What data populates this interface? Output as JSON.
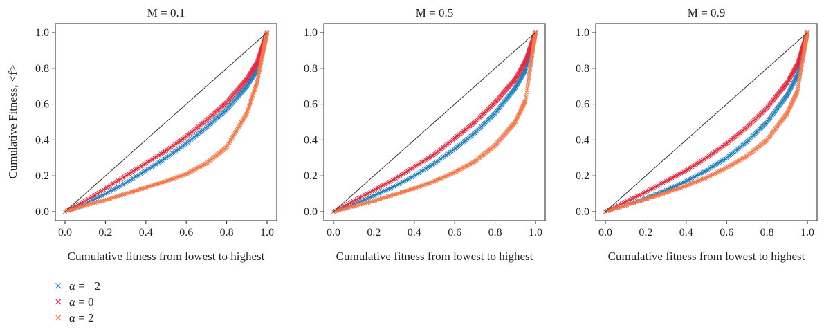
{
  "chart_data": {
    "type": "scatter",
    "ylabel": "Cumulative Fitness, <f>",
    "xlim": [
      0,
      1
    ],
    "ylim": [
      0,
      1
    ],
    "xticks": [
      "0.0",
      "0.2",
      "0.4",
      "0.6",
      "0.8",
      "1.0"
    ],
    "yticks": [
      "0.0",
      "0.2",
      "0.4",
      "0.6",
      "0.8",
      "1.0"
    ],
    "legend_position": "bottom-left, below plots",
    "marker": "x",
    "series_meta": [
      {
        "name": "α = −2",
        "color": "#1f7fc1"
      },
      {
        "name": "α = 0",
        "color": "#e8263b"
      },
      {
        "name": "α = 2",
        "color": "#f4794a"
      }
    ],
    "diagonal_reference": {
      "x": [
        0,
        1
      ],
      "y": [
        0,
        1
      ],
      "color": "#333333"
    },
    "panels": [
      {
        "title": "M = 0.1",
        "xlabel": "Cumulative fitness from lowest to highest",
        "series": [
          {
            "name": "α = −2",
            "x": [
              0,
              0.1,
              0.2,
              0.3,
              0.4,
              0.5,
              0.6,
              0.7,
              0.8,
              0.9,
              0.95,
              1.0
            ],
            "y": [
              0,
              0.045,
              0.1,
              0.16,
              0.23,
              0.3,
              0.38,
              0.47,
              0.57,
              0.7,
              0.79,
              1.0
            ]
          },
          {
            "name": "α = 0",
            "x": [
              0,
              0.1,
              0.2,
              0.3,
              0.4,
              0.5,
              0.6,
              0.7,
              0.8,
              0.9,
              0.95,
              1.0
            ],
            "y": [
              0,
              0.06,
              0.13,
              0.2,
              0.27,
              0.34,
              0.42,
              0.51,
              0.61,
              0.74,
              0.83,
              1.0
            ]
          },
          {
            "name": "α = 2",
            "x": [
              0,
              0.1,
              0.2,
              0.3,
              0.4,
              0.5,
              0.6,
              0.7,
              0.8,
              0.9,
              0.95,
              1.0
            ],
            "y": [
              0,
              0.035,
              0.065,
              0.1,
              0.135,
              0.17,
              0.21,
              0.27,
              0.36,
              0.55,
              0.72,
              1.0
            ]
          }
        ]
      },
      {
        "title": "M = 0.5",
        "xlabel": "Cumulative fitness from lowest to highest",
        "series": [
          {
            "name": "α = −2",
            "x": [
              0,
              0.1,
              0.2,
              0.3,
              0.4,
              0.5,
              0.6,
              0.7,
              0.8,
              0.9,
              0.95,
              1.0
            ],
            "y": [
              0,
              0.04,
              0.09,
              0.14,
              0.2,
              0.27,
              0.35,
              0.44,
              0.55,
              0.69,
              0.79,
              1.0
            ]
          },
          {
            "name": "α = 0",
            "x": [
              0,
              0.1,
              0.2,
              0.3,
              0.4,
              0.5,
              0.6,
              0.7,
              0.8,
              0.9,
              0.95,
              1.0
            ],
            "y": [
              0,
              0.06,
              0.12,
              0.18,
              0.25,
              0.32,
              0.41,
              0.5,
              0.61,
              0.74,
              0.84,
              1.0
            ]
          },
          {
            "name": "α = 2",
            "x": [
              0,
              0.1,
              0.2,
              0.3,
              0.4,
              0.5,
              0.6,
              0.7,
              0.8,
              0.9,
              0.95,
              1.0
            ],
            "y": [
              0,
              0.03,
              0.06,
              0.095,
              0.13,
              0.17,
              0.22,
              0.28,
              0.37,
              0.5,
              0.62,
              1.0
            ]
          }
        ]
      },
      {
        "title": "M = 0.9",
        "xlabel": "Cumulative fitness from lowest to highest",
        "series": [
          {
            "name": "α = −2",
            "x": [
              0,
              0.1,
              0.2,
              0.3,
              0.4,
              0.5,
              0.6,
              0.7,
              0.8,
              0.9,
              0.95,
              1.0
            ],
            "y": [
              0,
              0.035,
              0.075,
              0.12,
              0.17,
              0.23,
              0.3,
              0.39,
              0.5,
              0.65,
              0.76,
              1.0
            ]
          },
          {
            "name": "α = 0",
            "x": [
              0,
              0.1,
              0.2,
              0.3,
              0.4,
              0.5,
              0.6,
              0.7,
              0.8,
              0.9,
              0.95,
              1.0
            ],
            "y": [
              0,
              0.055,
              0.11,
              0.17,
              0.23,
              0.3,
              0.38,
              0.47,
              0.58,
              0.72,
              0.82,
              1.0
            ]
          },
          {
            "name": "α = 2",
            "x": [
              0,
              0.1,
              0.2,
              0.3,
              0.4,
              0.5,
              0.6,
              0.7,
              0.8,
              0.9,
              0.95,
              1.0
            ],
            "y": [
              0,
              0.035,
              0.07,
              0.105,
              0.145,
              0.19,
              0.245,
              0.31,
              0.4,
              0.55,
              0.67,
              1.0
            ]
          }
        ]
      }
    ]
  },
  "legend": {
    "symbol": "×",
    "items": [
      {
        "greek": "α",
        "rest": " = −2",
        "color": "#1f7fc1"
      },
      {
        "greek": "α",
        "rest": " = 0",
        "color": "#e8263b"
      },
      {
        "greek": "α",
        "rest": " = 2",
        "color": "#f4794a"
      }
    ]
  }
}
